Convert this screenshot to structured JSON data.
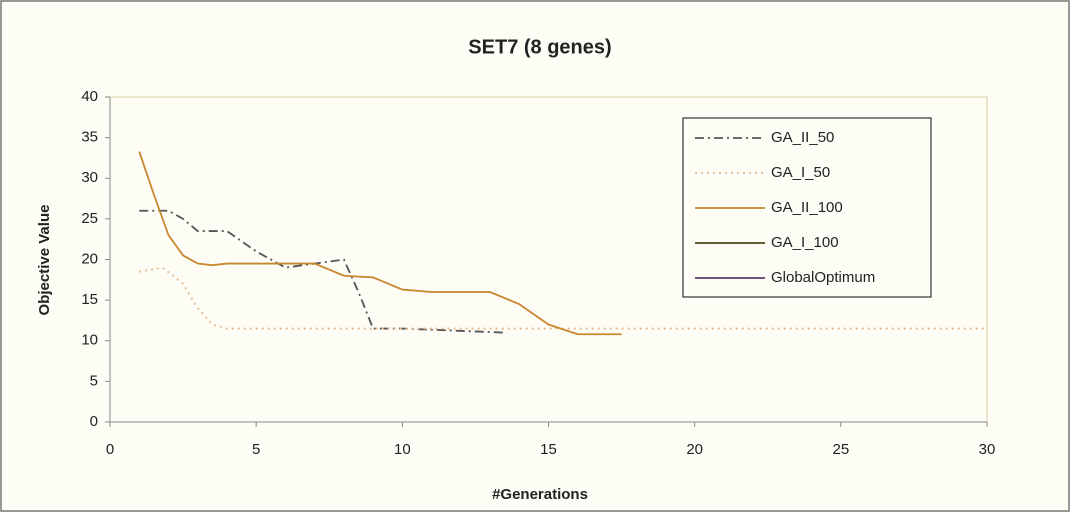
{
  "chart_data": {
    "type": "line",
    "title": "SET7 (8 genes)",
    "x_label": "#Generations",
    "y_label": "Objective Value",
    "xlim": [
      0,
      30
    ],
    "xticks": [
      0,
      5,
      10,
      15,
      20,
      25,
      30
    ],
    "ylim": [
      0,
      40
    ],
    "yticks": [
      0,
      5,
      10,
      15,
      20,
      25,
      30,
      35,
      40
    ],
    "grid": false,
    "legend": "upper right",
    "series": [
      {
        "name": "GA_II_50",
        "color": "#555555",
        "dash": "9 4 2 4",
        "x": [
          1,
          2,
          2.5,
          3,
          3.5,
          4,
          5,
          6,
          7,
          8,
          8.5,
          9,
          10,
          13.5
        ],
        "values": [
          26,
          26,
          25,
          23.5,
          23.5,
          23.5,
          21,
          19,
          19.5,
          20,
          16,
          11.5,
          11.5,
          11
        ]
      },
      {
        "name": "GA_I_50",
        "color": "#e8b88a",
        "dash": "2 4",
        "x": [
          1,
          1.8,
          2.5,
          3,
          3.5,
          4,
          30
        ],
        "values": [
          18.5,
          19,
          17,
          14,
          12,
          11.5,
          11.5
        ]
      },
      {
        "name": "GA_II_100",
        "color": "#c8862e",
        "dash": "",
        "x": [
          1,
          1.5,
          2,
          2.5,
          3,
          3.5,
          4,
          7,
          8,
          9,
          10,
          11,
          13,
          14,
          15,
          16,
          17.5
        ],
        "values": [
          33.3,
          28,
          23,
          20.5,
          19.5,
          19.3,
          19.5,
          19.5,
          18,
          17.8,
          16.3,
          16,
          16,
          14.5,
          12,
          10.8,
          10.8
        ]
      },
      {
        "name": "GA_I_100",
        "color": "#4a4a1a",
        "dash": "",
        "x": [],
        "values": []
      },
      {
        "name": "GlobalOptimum",
        "color": "#5a3a6a",
        "dash": "",
        "x": [],
        "values": []
      }
    ]
  }
}
